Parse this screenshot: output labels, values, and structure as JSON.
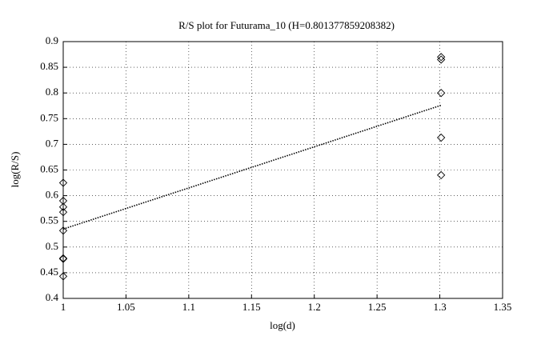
{
  "chart_data": {
    "type": "scatter",
    "title": "R/S plot for Futurama_10 (H=0.801377859208382)",
    "x_label": "log(d)",
    "y_label": "log(R/S)",
    "xlim": [
      1,
      1.35
    ],
    "xticks": [
      1,
      1.05,
      1.1,
      1.15,
      1.2,
      1.25,
      1.3,
      1.35
    ],
    "ylim": [
      0.4,
      0.9
    ],
    "yticks": [
      0.4,
      0.45,
      0.5,
      0.55,
      0.6,
      0.65,
      0.7,
      0.75,
      0.8,
      0.85,
      0.9
    ],
    "grid": true,
    "series": [
      {
        "marker": "diamond",
        "color": "#000000",
        "x": [
          1,
          1,
          1,
          1,
          1,
          1,
          1,
          1,
          1.30103,
          1.30103,
          1.30103,
          1.30103,
          1.30103
        ],
        "values": [
          0.625,
          0.59,
          0.578,
          0.568,
          0.532,
          0.478,
          0.477,
          0.443,
          0.87,
          0.865,
          0.8,
          0.713,
          0.64
        ]
      },
      {
        "line_style": "dotted",
        "color": "#000000",
        "x": [
          1,
          1.30103
        ],
        "values": [
          0.535,
          0.776
        ]
      }
    ]
  }
}
